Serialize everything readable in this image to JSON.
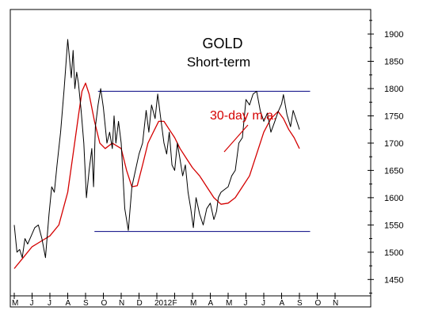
{
  "chart_data": {
    "type": "line",
    "title": "GOLD",
    "subtitle": "Short-term",
    "xlabel": "",
    "ylabel": "",
    "ylim": [
      1420,
      1945
    ],
    "y_ticks": [
      1450,
      1500,
      1550,
      1600,
      1650,
      1700,
      1750,
      1800,
      1850,
      1900
    ],
    "y_axis_side": "right",
    "grid": false,
    "x_month_labels": [
      "M",
      "J",
      "J",
      "A",
      "S",
      "O",
      "N",
      "D",
      "2012",
      "F",
      "M",
      "A",
      "M",
      "J",
      "J",
      "A",
      "S",
      "O",
      "N"
    ],
    "annotation": {
      "text": "30-day m.a.",
      "color": "#d40000"
    },
    "reference_lines": [
      {
        "kind": "resistance",
        "value": 1795,
        "from_month": 4.7,
        "to_month": 16.6,
        "color": "#000080"
      },
      {
        "kind": "support",
        "value": 1538,
        "from_month": 4.5,
        "to_month": 16.6,
        "color": "#000080"
      }
    ],
    "series": [
      {
        "kind": "price",
        "color": "#000000",
        "x_months": [
          0.0,
          0.15,
          0.3,
          0.45,
          0.6,
          0.75,
          0.95,
          1.15,
          1.35,
          1.55,
          1.75,
          1.95,
          2.1,
          2.25,
          2.4,
          2.6,
          2.8,
          3.0,
          3.2,
          3.3,
          3.4,
          3.5,
          3.6,
          3.75,
          3.9,
          4.05,
          4.2,
          4.35,
          4.45,
          4.55,
          4.7,
          4.85,
          5.0,
          5.2,
          5.35,
          5.5,
          5.6,
          5.7,
          5.85,
          6.0,
          6.2,
          6.4,
          6.6,
          6.8,
          7.0,
          7.2,
          7.4,
          7.55,
          7.7,
          7.9,
          8.05,
          8.2,
          8.4,
          8.55,
          8.7,
          8.85,
          9.0,
          9.15,
          9.3,
          9.45,
          9.6,
          9.75,
          9.9,
          10.05,
          10.2,
          10.4,
          10.6,
          10.8,
          11.0,
          11.2,
          11.35,
          11.45,
          11.6,
          11.8,
          12.0,
          12.2,
          12.4,
          12.6,
          12.8,
          13.0,
          13.2,
          13.4,
          13.6,
          13.8,
          14.0,
          14.2,
          14.4,
          14.6,
          14.8,
          15.0,
          15.1,
          15.3,
          15.5,
          15.65,
          15.8,
          15.95,
          16.0
        ],
        "y": [
          1550,
          1500,
          1505,
          1490,
          1525,
          1515,
          1530,
          1545,
          1550,
          1525,
          1490,
          1570,
          1620,
          1610,
          1660,
          1720,
          1800,
          1890,
          1820,
          1870,
          1800,
          1830,
          1810,
          1760,
          1700,
          1600,
          1650,
          1690,
          1620,
          1730,
          1770,
          1800,
          1765,
          1700,
          1720,
          1690,
          1750,
          1700,
          1740,
          1700,
          1580,
          1540,
          1620,
          1650,
          1680,
          1700,
          1760,
          1720,
          1770,
          1745,
          1790,
          1750,
          1700,
          1680,
          1720,
          1660,
          1650,
          1700,
          1670,
          1640,
          1660,
          1610,
          1580,
          1545,
          1600,
          1570,
          1550,
          1580,
          1590,
          1560,
          1575,
          1600,
          1610,
          1615,
          1620,
          1640,
          1650,
          1700,
          1710,
          1780,
          1770,
          1790,
          1795,
          1760,
          1740,
          1755,
          1720,
          1738,
          1757,
          1772,
          1789,
          1752,
          1730,
          1760,
          1745,
          1730,
          1725
        ]
      },
      {
        "kind": "moving-average",
        "name": "30-day m.a.",
        "color": "#d40000",
        "x_months": [
          0.0,
          0.5,
          1.0,
          1.5,
          2.0,
          2.5,
          3.0,
          3.3,
          3.6,
          3.8,
          4.0,
          4.2,
          4.5,
          4.8,
          5.1,
          5.5,
          6.0,
          6.3,
          6.6,
          6.9,
          7.2,
          7.5,
          7.8,
          8.1,
          8.4,
          8.7,
          9.0,
          9.3,
          9.7,
          10.0,
          10.4,
          10.8,
          11.2,
          11.6,
          12.0,
          12.4,
          12.8,
          13.2,
          13.6,
          14.0,
          14.4,
          14.8,
          15.1,
          15.4,
          15.7,
          16.0
        ],
        "y": [
          1470,
          1490,
          1510,
          1520,
          1530,
          1550,
          1610,
          1680,
          1750,
          1795,
          1810,
          1790,
          1740,
          1700,
          1690,
          1700,
          1690,
          1650,
          1620,
          1622,
          1660,
          1700,
          1720,
          1740,
          1740,
          1725,
          1710,
          1690,
          1670,
          1655,
          1640,
          1620,
          1600,
          1588,
          1590,
          1600,
          1620,
          1640,
          1680,
          1720,
          1745,
          1758,
          1745,
          1725,
          1710,
          1690
        ]
      }
    ]
  }
}
